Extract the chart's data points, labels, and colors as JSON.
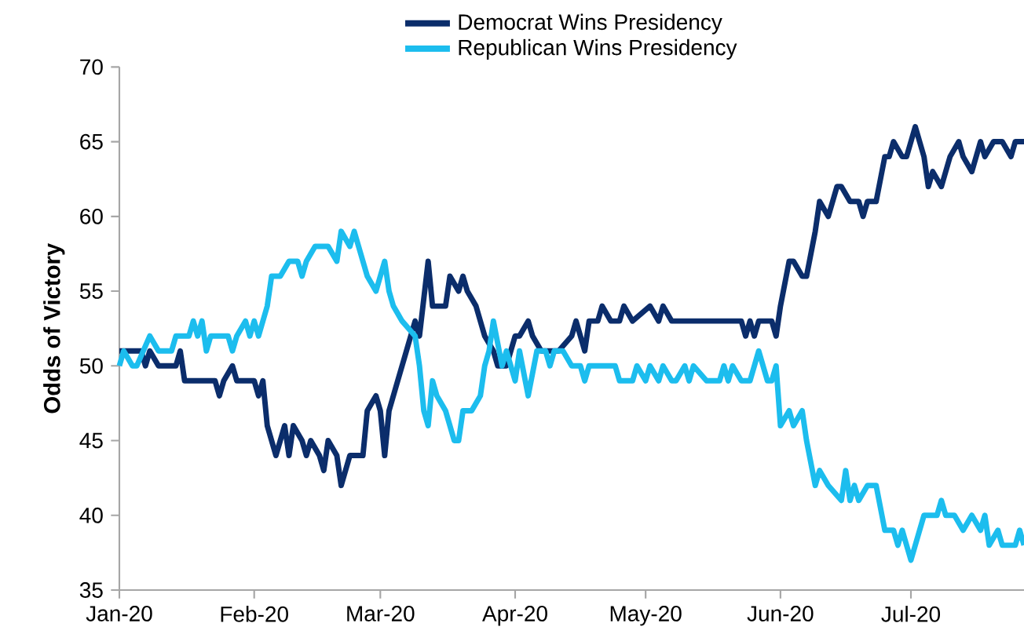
{
  "chart_data": {
    "type": "line",
    "ylabel": "Odds of Victory",
    "legend": "top",
    "xlim": [
      "2020-01-01",
      "2020-07-27"
    ],
    "xticks": [
      {
        "value": "2020-01-01",
        "label": "Jan-20"
      },
      {
        "value": "2020-02-01",
        "label": "Feb-20"
      },
      {
        "value": "2020-03-01",
        "label": "Mar-20"
      },
      {
        "value": "2020-04-01",
        "label": "Apr-20"
      },
      {
        "value": "2020-05-01",
        "label": "May-20"
      },
      {
        "value": "2020-06-01",
        "label": "Jun-20"
      },
      {
        "value": "2020-07-01",
        "label": "Jul-20"
      }
    ],
    "ylim": [
      35,
      70
    ],
    "yticks": [
      35,
      40,
      45,
      50,
      55,
      60,
      65,
      70
    ],
    "series": [
      {
        "name": "Democrat Wins Presidency",
        "color": "#0b2d6b",
        "x": [
          "2020-01-01",
          "2020-01-06",
          "2020-01-07",
          "2020-01-08",
          "2020-01-10",
          "2020-01-14",
          "2020-01-15",
          "2020-01-16",
          "2020-01-23",
          "2020-01-24",
          "2020-01-25",
          "2020-01-27",
          "2020-01-28",
          "2020-02-01",
          "2020-02-02",
          "2020-02-03",
          "2020-02-04",
          "2020-02-06",
          "2020-02-08",
          "2020-02-09",
          "2020-02-10",
          "2020-02-12",
          "2020-02-13",
          "2020-02-14",
          "2020-02-16",
          "2020-02-17",
          "2020-02-18",
          "2020-02-20",
          "2020-02-21",
          "2020-02-23",
          "2020-02-26",
          "2020-02-27",
          "2020-02-29",
          "2020-03-01",
          "2020-03-02",
          "2020-03-03",
          "2020-03-05",
          "2020-03-07",
          "2020-03-09",
          "2020-03-10",
          "2020-03-12",
          "2020-03-13",
          "2020-03-16",
          "2020-03-17",
          "2020-03-19",
          "2020-03-20",
          "2020-03-21",
          "2020-03-23",
          "2020-03-25",
          "2020-03-27",
          "2020-03-28",
          "2020-03-30",
          "2020-04-01",
          "2020-04-02",
          "2020-04-04",
          "2020-04-05",
          "2020-04-07",
          "2020-04-09",
          "2020-04-11",
          "2020-04-14",
          "2020-04-15",
          "2020-04-17",
          "2020-04-18",
          "2020-04-20",
          "2020-04-21",
          "2020-04-23",
          "2020-04-25",
          "2020-04-26",
          "2020-04-28",
          "2020-05-02",
          "2020-05-04",
          "2020-05-05",
          "2020-05-07",
          "2020-05-15",
          "2020-05-23",
          "2020-05-24",
          "2020-05-25",
          "2020-05-26",
          "2020-05-27",
          "2020-05-30",
          "2020-05-31",
          "2020-06-01",
          "2020-06-03",
          "2020-06-04",
          "2020-06-06",
          "2020-06-07",
          "2020-06-09",
          "2020-06-10",
          "2020-06-12",
          "2020-06-14",
          "2020-06-15",
          "2020-06-17",
          "2020-06-19",
          "2020-06-20",
          "2020-06-21",
          "2020-06-23",
          "2020-06-25",
          "2020-06-26",
          "2020-06-27",
          "2020-06-29",
          "2020-06-30",
          "2020-07-02",
          "2020-07-04",
          "2020-07-05",
          "2020-07-06",
          "2020-07-08",
          "2020-07-10",
          "2020-07-12",
          "2020-07-13",
          "2020-07-15",
          "2020-07-17",
          "2020-07-18",
          "2020-07-20",
          "2020-07-22",
          "2020-07-24",
          "2020-07-25",
          "2020-07-27"
        ],
        "values": [
          51,
          51,
          50,
          51,
          50,
          50,
          51,
          49,
          49,
          48,
          49,
          50,
          49,
          49,
          48,
          49,
          46,
          44,
          46,
          44,
          46,
          45,
          44,
          45,
          44,
          43,
          45,
          44,
          42,
          44,
          44,
          47,
          48,
          47,
          44,
          47,
          49,
          51,
          53,
          52,
          57,
          54,
          54,
          56,
          55,
          56,
          55,
          54,
          52,
          51,
          50,
          50,
          52,
          52,
          53,
          52,
          51,
          51,
          51,
          52,
          53,
          51,
          53,
          53,
          54,
          53,
          53,
          54,
          53,
          54,
          53,
          54,
          53,
          53,
          53,
          52,
          53,
          52,
          53,
          53,
          52,
          54,
          57,
          57,
          56,
          56,
          59,
          61,
          60,
          62,
          62,
          61,
          61,
          60,
          61,
          61,
          64,
          64,
          65,
          64,
          64,
          66,
          64,
          62,
          63,
          62,
          64,
          65,
          64,
          63,
          65,
          64,
          65,
          65,
          64,
          65,
          65
        ]
      },
      {
        "name": "Republican Wins Presidency",
        "color": "#1cbdee",
        "x": [
          "2020-01-01",
          "2020-01-02",
          "2020-01-04",
          "2020-01-05",
          "2020-01-08",
          "2020-01-10",
          "2020-01-13",
          "2020-01-14",
          "2020-01-17",
          "2020-01-18",
          "2020-01-19",
          "2020-01-20",
          "2020-01-21",
          "2020-01-22",
          "2020-01-26",
          "2020-01-27",
          "2020-01-28",
          "2020-01-30",
          "2020-01-31",
          "2020-02-01",
          "2020-02-02",
          "2020-02-04",
          "2020-02-05",
          "2020-02-07",
          "2020-02-09",
          "2020-02-11",
          "2020-02-12",
          "2020-02-13",
          "2020-02-15",
          "2020-02-18",
          "2020-02-20",
          "2020-02-21",
          "2020-02-23",
          "2020-02-24",
          "2020-02-25",
          "2020-02-27",
          "2020-02-29",
          "2020-03-02",
          "2020-03-03",
          "2020-03-04",
          "2020-03-06",
          "2020-03-09",
          "2020-03-10",
          "2020-03-11",
          "2020-03-12",
          "2020-03-13",
          "2020-03-14",
          "2020-03-16",
          "2020-03-18",
          "2020-03-19",
          "2020-03-20",
          "2020-03-22",
          "2020-03-24",
          "2020-03-25",
          "2020-03-26",
          "2020-03-27",
          "2020-03-29",
          "2020-03-30",
          "2020-04-01",
          "2020-04-02",
          "2020-04-04",
          "2020-04-06",
          "2020-04-08",
          "2020-04-09",
          "2020-04-10",
          "2020-04-12",
          "2020-04-14",
          "2020-04-16",
          "2020-04-17",
          "2020-04-18",
          "2020-04-24",
          "2020-04-25",
          "2020-04-28",
          "2020-04-29",
          "2020-05-01",
          "2020-05-02",
          "2020-05-04",
          "2020-05-05",
          "2020-05-07",
          "2020-05-08",
          "2020-05-10",
          "2020-05-11",
          "2020-05-12",
          "2020-05-15",
          "2020-05-18",
          "2020-05-19",
          "2020-05-20",
          "2020-05-21",
          "2020-05-23",
          "2020-05-25",
          "2020-05-27",
          "2020-05-29",
          "2020-05-30",
          "2020-05-31",
          "2020-06-01",
          "2020-06-03",
          "2020-06-04",
          "2020-06-06",
          "2020-06-07",
          "2020-06-09",
          "2020-06-10",
          "2020-06-12",
          "2020-06-15",
          "2020-06-16",
          "2020-06-17",
          "2020-06-18",
          "2020-06-19",
          "2020-06-21",
          "2020-06-23",
          "2020-06-25",
          "2020-06-27",
          "2020-06-28",
          "2020-06-29",
          "2020-06-30",
          "2020-07-01",
          "2020-07-03",
          "2020-07-04",
          "2020-07-07",
          "2020-07-08",
          "2020-07-09",
          "2020-07-11",
          "2020-07-13",
          "2020-07-15",
          "2020-07-17",
          "2020-07-18",
          "2020-07-19",
          "2020-07-21",
          "2020-07-22",
          "2020-07-25",
          "2020-07-26",
          "2020-07-27"
        ],
        "values": [
          50,
          51,
          50,
          50,
          52,
          51,
          51,
          52,
          52,
          53,
          52,
          53,
          51,
          52,
          52,
          51,
          52,
          53,
          52,
          53,
          52,
          54,
          56,
          56,
          57,
          57,
          56,
          57,
          58,
          58,
          57,
          59,
          58,
          59,
          58,
          56,
          55,
          57,
          55,
          54,
          53,
          52,
          50,
          47,
          46,
          49,
          48,
          47,
          45,
          45,
          47,
          47,
          48,
          50,
          51,
          53,
          50,
          51,
          49,
          51,
          48,
          51,
          51,
          50,
          51,
          51,
          50,
          50,
          49,
          50,
          50,
          49,
          49,
          50,
          49,
          50,
          49,
          50,
          49,
          49,
          50,
          49,
          50,
          49,
          49,
          50,
          49,
          50,
          49,
          49,
          51,
          49,
          49,
          50,
          46,
          47,
          46,
          47,
          45,
          42,
          43,
          42,
          41,
          43,
          41,
          42,
          41,
          42,
          42,
          39,
          39,
          38,
          39,
          38,
          37,
          39,
          40,
          40,
          41,
          40,
          40,
          39,
          40,
          39,
          40,
          38,
          39,
          38,
          38,
          39,
          38
        ]
      }
    ]
  }
}
